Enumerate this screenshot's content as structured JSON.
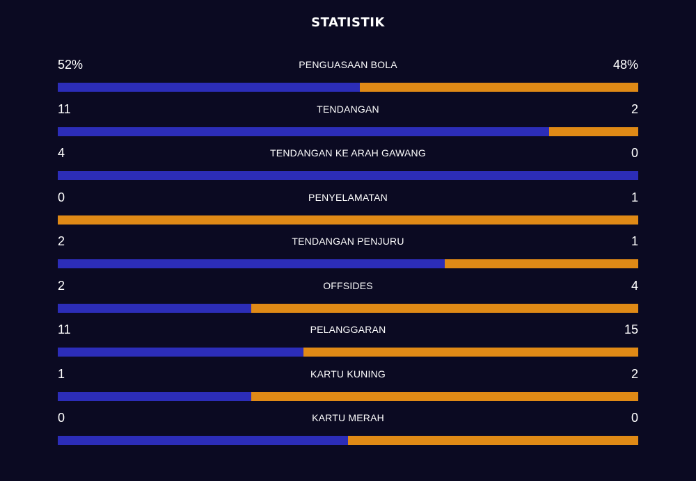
{
  "title": "STATISTIK",
  "colors": {
    "home": "#2c2db8",
    "away": "#e08a16"
  },
  "stats": [
    {
      "label": "PENGUASAAN BOLA",
      "home": "52%",
      "away": "48%",
      "home_share": 0.52
    },
    {
      "label": "TENDANGAN",
      "home": "11",
      "away": "2",
      "home_share": 0.846
    },
    {
      "label": "TENDANGAN KE ARAH GAWANG",
      "home": "4",
      "away": "0",
      "home_share": 1.0
    },
    {
      "label": "PENYELAMATAN",
      "home": "0",
      "away": "1",
      "home_share": 0.0
    },
    {
      "label": "TENDANGAN PENJURU",
      "home": "2",
      "away": "1",
      "home_share": 0.667
    },
    {
      "label": "OFFSIDES",
      "home": "2",
      "away": "4",
      "home_share": 0.333
    },
    {
      "label": "PELANGGARAN",
      "home": "11",
      "away": "15",
      "home_share": 0.423
    },
    {
      "label": "KARTU KUNING",
      "home": "1",
      "away": "2",
      "home_share": 0.333
    },
    {
      "label": "KARTU MERAH",
      "home": "0",
      "away": "0",
      "home_share": 0.5
    }
  ]
}
